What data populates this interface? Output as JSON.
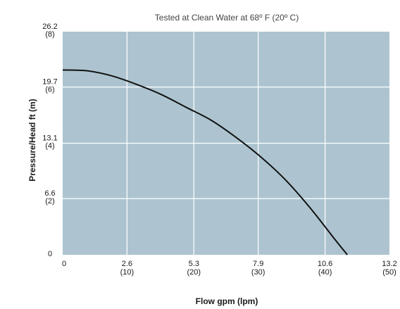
{
  "chart_data": {
    "type": "line",
    "subtitle": "Tested at Clean Water at 68º F (20º C)",
    "xlabel": "Flow gpm (lpm)",
    "ylabel": "Pressure/Head ft (m)",
    "xlim": [
      0,
      13.2
    ],
    "ylim": [
      0,
      26.2
    ],
    "grid": true,
    "x_ticks": [
      {
        "value": 0,
        "label": "0",
        "sub": ""
      },
      {
        "value": 2.6,
        "label": "2.6",
        "sub": "(10)"
      },
      {
        "value": 5.3,
        "label": "5.3",
        "sub": "(20)"
      },
      {
        "value": 7.9,
        "label": "7.9",
        "sub": "(30)"
      },
      {
        "value": 10.6,
        "label": "10.6",
        "sub": "(40)"
      },
      {
        "value": 13.2,
        "label": "13.2",
        "sub": "(50)"
      }
    ],
    "y_ticks": [
      {
        "value": 0,
        "label": "0",
        "sub": ""
      },
      {
        "value": 6.6,
        "label": "6.6",
        "sub": "(2)"
      },
      {
        "value": 13.1,
        "label": "13.1",
        "sub": "(4)"
      },
      {
        "value": 19.7,
        "label": "19.7",
        "sub": "(6)"
      },
      {
        "value": 26.2,
        "label": "26.2",
        "sub": "(8)"
      }
    ],
    "series": [
      {
        "x": [
          0,
          1,
          2,
          3,
          4,
          5,
          6,
          7,
          8,
          9,
          10,
          11,
          11.5
        ],
        "y": [
          21.7,
          21.6,
          21.0,
          20.0,
          18.8,
          17.3,
          15.8,
          13.8,
          11.5,
          8.8,
          5.5,
          1.8,
          0
        ]
      }
    ],
    "colors": {
      "plot_bg": "#adc4d0",
      "grid": "#ffffff",
      "line": "#111111"
    }
  }
}
